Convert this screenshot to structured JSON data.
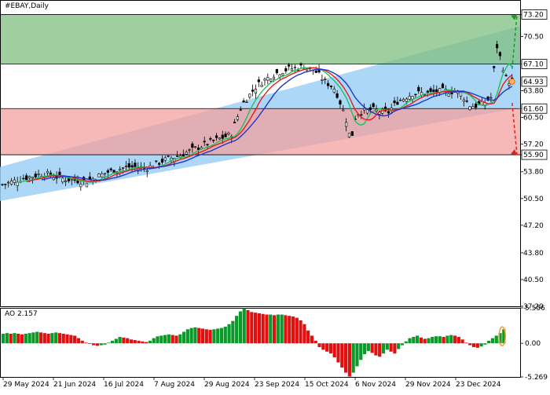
{
  "header": {
    "symbol_label": "#EBAY,Daily"
  },
  "oscillator": {
    "label": "AO 2.157"
  },
  "chart_data": [
    {
      "type": "candlestick",
      "title": "#EBAY,Daily",
      "ylim": [
        37.2,
        75.0
      ],
      "y_ticks": [
        "73.20",
        "70.50",
        "67.10",
        "63.80",
        "61.60",
        "60.50",
        "57.20",
        "55.90",
        "53.80",
        "50.50",
        "47.20",
        "43.80",
        "40.50",
        "37.20"
      ],
      "y_tick_values": [
        73.2,
        70.5,
        67.1,
        63.8,
        61.6,
        60.5,
        57.2,
        55.9,
        53.8,
        50.5,
        47.2,
        43.8,
        40.5,
        37.2
      ],
      "highlighted_levels": [
        {
          "label": "73.20",
          "value": 73.2
        },
        {
          "label": "67.10",
          "value": 67.1
        },
        {
          "label": "64.93",
          "value": 64.93
        },
        {
          "label": "61.60",
          "value": 61.6
        },
        {
          "label": "55.90",
          "value": 55.9
        }
      ],
      "x_tick_labels": [
        "29 May 2024",
        "21 Jun 2024",
        "16 Jul 2024",
        "7 Aug 2024",
        "29 Aug 2024",
        "23 Sep 2024",
        "15 Oct 2024",
        "6 Nov 2024",
        "29 Nov 2024",
        "23 Dec 2024"
      ],
      "zones": [
        {
          "name": "green zone",
          "from": 67.1,
          "to": 73.2,
          "color": "#7fbf7f"
        },
        {
          "name": "red zone",
          "from": 55.9,
          "to": 61.6,
          "color": "#f4a0a0"
        }
      ],
      "channel": {
        "color": "#9fd0f5",
        "start_lower": 50.2,
        "start_upper": 54.4,
        "end_lower": 61.7,
        "end_upper": 71.8
      },
      "close_path": [
        [
          0,
          52.2
        ],
        [
          0.04,
          53.0
        ],
        [
          0.08,
          53.6
        ],
        [
          0.12,
          52.9
        ],
        [
          0.16,
          52.6
        ],
        [
          0.2,
          53.7
        ],
        [
          0.24,
          54.4
        ],
        [
          0.28,
          54.3
        ],
        [
          0.31,
          55.2
        ],
        [
          0.34,
          55.8
        ],
        [
          0.38,
          56.9
        ],
        [
          0.41,
          57.7
        ],
        [
          0.44,
          58.4
        ],
        [
          0.46,
          62.0
        ],
        [
          0.49,
          64.5
        ],
        [
          0.52,
          65.8
        ],
        [
          0.55,
          66.5
        ],
        [
          0.58,
          66.8
        ],
        [
          0.6,
          66.3
        ],
        [
          0.62,
          65.0
        ],
        [
          0.64,
          64.0
        ],
        [
          0.66,
          60.5
        ],
        [
          0.67,
          57.5
        ],
        [
          0.68,
          61.0
        ],
        [
          0.71,
          61.5
        ],
        [
          0.74,
          61.0
        ],
        [
          0.76,
          62.5
        ],
        [
          0.79,
          63.5
        ],
        [
          0.82,
          63.5
        ],
        [
          0.85,
          63.8
        ],
        [
          0.88,
          63.6
        ],
        [
          0.9,
          61.9
        ],
        [
          0.92,
          62.0
        ],
        [
          0.94,
          63.0
        ],
        [
          0.95,
          69.5
        ],
        [
          0.97,
          65.0
        ],
        [
          0.98,
          64.93
        ]
      ],
      "series": [
        {
          "name": "",
          "color": "#22c05a"
        },
        {
          "name": "",
          "color": "#e02020"
        },
        {
          "name": "",
          "color": "#2233cc"
        }
      ],
      "forecast_arrows": [
        {
          "direction": "up",
          "color": "#1a9a2a",
          "from": 66.5,
          "to": 73.2
        },
        {
          "direction": "down",
          "color": "#e02020",
          "from": 62.3,
          "to": 55.9
        }
      ]
    },
    {
      "type": "bar",
      "title": "AO 2.157",
      "ylim": [
        -5.269,
        5.556
      ],
      "y_ticks": [
        "5.556",
        "0.00",
        "-5.269"
      ],
      "y_tick_values": [
        5.556,
        0.0,
        -5.269
      ],
      "values": [
        1.5,
        1.6,
        1.5,
        1.6,
        1.5,
        1.4,
        1.5,
        1.6,
        1.7,
        1.8,
        1.7,
        1.6,
        1.5,
        1.6,
        1.7,
        1.6,
        1.5,
        1.4,
        1.3,
        1.2,
        0.8,
        0.4,
        0.1,
        -0.1,
        -0.3,
        -0.4,
        -0.3,
        -0.2,
        0.1,
        0.4,
        0.7,
        1.0,
        0.9,
        0.8,
        0.6,
        0.5,
        0.4,
        0.3,
        0.2,
        0.4,
        0.8,
        1.1,
        1.2,
        1.3,
        1.4,
        1.3,
        1.2,
        1.4,
        1.8,
        2.2,
        2.4,
        2.5,
        2.4,
        2.3,
        2.2,
        2.1,
        2.2,
        2.3,
        2.4,
        2.6,
        3.0,
        3.5,
        4.3,
        5.0,
        5.5,
        5.2,
        4.9,
        4.8,
        4.7,
        4.6,
        4.5,
        4.5,
        4.4,
        4.5,
        4.5,
        4.4,
        4.3,
        4.2,
        4.0,
        3.6,
        3.0,
        2.0,
        1.2,
        0.4,
        -0.6,
        -1.0,
        -1.3,
        -1.6,
        -2.2,
        -3.0,
        -3.8,
        -4.6,
        -5.2,
        -4.6,
        -3.6,
        -2.6,
        -1.7,
        -1.2,
        -1.5,
        -1.9,
        -2.1,
        -1.6,
        -1.0,
        -1.3,
        -1.6,
        -0.9,
        -0.3,
        0.3,
        0.8,
        1.0,
        1.2,
        0.9,
        0.7,
        0.8,
        1.0,
        1.1,
        1.1,
        1.0,
        1.2,
        1.3,
        1.2,
        1.0,
        0.6,
        0.1,
        -0.3,
        -0.6,
        -0.7,
        -0.5,
        -0.2,
        0.4,
        0.8,
        1.2,
        1.6,
        2.2
      ]
    }
  ]
}
